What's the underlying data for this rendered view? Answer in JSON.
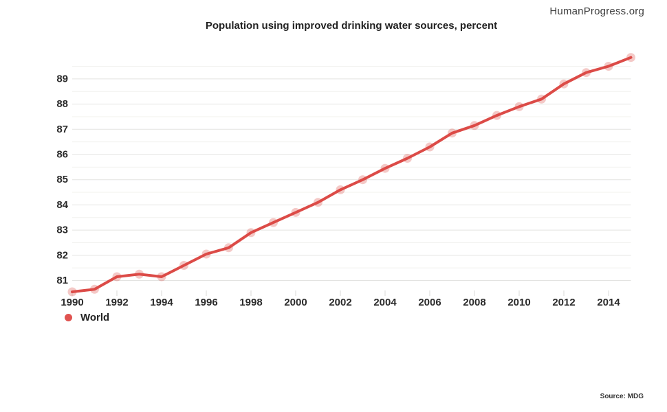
{
  "header": {
    "brand": "HumanProgress.org"
  },
  "legend": {
    "label": "World",
    "color": "#e05350"
  },
  "footer": {
    "source": "Source: MDG"
  },
  "chart_data": {
    "type": "line",
    "title": "Population using improved drinking water sources, percent",
    "xlabel": "",
    "ylabel": "",
    "x": [
      1990,
      1991,
      1992,
      1993,
      1994,
      1995,
      1996,
      1997,
      1998,
      1999,
      2000,
      2001,
      2002,
      2003,
      2004,
      2005,
      2006,
      2007,
      2008,
      2009,
      2010,
      2011,
      2012,
      2013,
      2014,
      2015
    ],
    "series": [
      {
        "name": "World",
        "color": "#dc4b47",
        "marker_opacity": 0.3,
        "values": [
          80.55,
          80.65,
          81.15,
          81.25,
          81.15,
          81.6,
          82.05,
          82.3,
          82.9,
          83.3,
          83.7,
          84.1,
          84.6,
          85.0,
          85.45,
          85.85,
          86.3,
          86.85,
          87.15,
          87.55,
          87.9,
          88.2,
          88.8,
          89.25,
          89.5,
          89.85
        ]
      }
    ],
    "xlim": [
      1990,
      2015
    ],
    "ylim": [
      80.5,
      90
    ],
    "x_tick_labels": [
      1990,
      1992,
      1994,
      1996,
      1998,
      2000,
      2002,
      2004,
      2006,
      2008,
      2010,
      2012,
      2014
    ],
    "y_tick_labels": [
      81,
      82,
      83,
      84,
      85,
      86,
      87,
      88,
      89
    ],
    "y_minor_step": 0.5,
    "grid": true,
    "legend_position": "bottom-left"
  }
}
